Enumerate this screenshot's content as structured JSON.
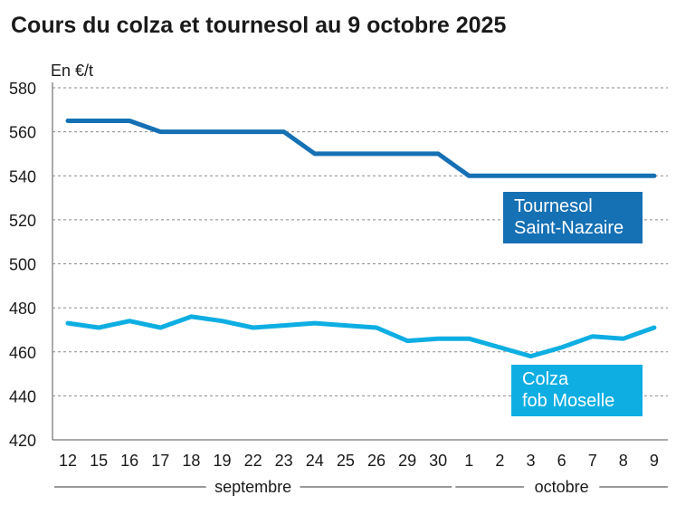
{
  "title": "Cours du colza et tournesol au 9 octobre 2025",
  "colors": {
    "tournesol": "#1570b4",
    "colza": "#0eaee3",
    "grid": "#888888"
  },
  "chart_data": {
    "type": "line",
    "title": "Cours du colza et tournesol au 9 octobre 2025",
    "ylabel": "En €/t",
    "ylim": [
      420,
      580
    ],
    "yticks": [
      420,
      440,
      460,
      480,
      500,
      520,
      540,
      560,
      580
    ],
    "categories": [
      "12",
      "15",
      "16",
      "17",
      "18",
      "19",
      "22",
      "23",
      "24",
      "25",
      "26",
      "29",
      "30",
      "1",
      "2",
      "3",
      "6",
      "7",
      "8",
      "9"
    ],
    "months": [
      {
        "label": "septembre",
        "from": 0,
        "to": 12
      },
      {
        "label": "octobre",
        "from": 13,
        "to": 19
      }
    ],
    "grid": true,
    "series": [
      {
        "name": "Tournesol Saint-Nazaire",
        "label_lines": [
          "Tournesol",
          "Saint-Nazaire"
        ],
        "color": "#1570b4",
        "values": [
          565,
          565,
          565,
          560,
          560,
          560,
          560,
          560,
          550,
          550,
          550,
          550,
          550,
          540,
          540,
          540,
          540,
          540,
          540,
          540
        ]
      },
      {
        "name": "Colza fob Moselle",
        "label_lines": [
          "Colza",
          "fob Moselle"
        ],
        "color": "#0eaee3",
        "values": [
          473,
          471,
          474,
          471,
          476,
          474,
          471,
          472,
          473,
          472,
          471,
          465,
          466,
          466,
          462,
          458,
          462,
          467,
          466,
          471
        ]
      }
    ]
  }
}
